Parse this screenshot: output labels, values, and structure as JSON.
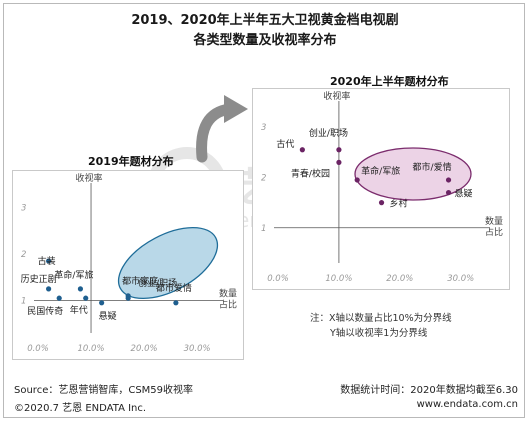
{
  "header": {
    "title_line1": "2019、2020年上半年五大卫视黄金档电视剧",
    "title_line2": "各类型数量及收视率分布"
  },
  "watermark": {
    "text": "艺恩",
    "subtext": "endata"
  },
  "chart_data": [
    {
      "type": "scatter",
      "title": "2019年题材分布",
      "xlabel": "数量占比",
      "ylabel": "收视率",
      "x_ticks": [
        "0.0%",
        "10.0%",
        "20.0%",
        "30.0%"
      ],
      "y_ticks": [
        "1",
        "2",
        "3"
      ],
      "xlim": [
        0,
        33
      ],
      "ylim": [
        0.3,
        3.4
      ],
      "points": [
        {
          "label": "古装",
          "x": 2.0,
          "y": 1.85
        },
        {
          "label": "历史正剧",
          "x": 2.0,
          "y": 1.25
        },
        {
          "label": "民国传奇",
          "x": 4.0,
          "y": 1.05
        },
        {
          "label": "革命/军旅",
          "x": 8.0,
          "y": 1.25
        },
        {
          "label": "年代",
          "x": 9.0,
          "y": 1.05
        },
        {
          "label": "悬疑",
          "x": 12.0,
          "y": 0.95
        },
        {
          "label": "都市家庭",
          "x": 17.0,
          "y": 1.05
        },
        {
          "label": "创业/职场",
          "x": 17.0,
          "y": 1.1
        },
        {
          "label": "都市爱情",
          "x": 26.0,
          "y": 0.95
        }
      ],
      "highlight": "ellipse",
      "highlight_color": "#1f6d99"
    },
    {
      "type": "scatter",
      "title": "2020年上半年题材分布",
      "xlabel": "数量占比",
      "ylabel": "收视率",
      "x_ticks": [
        "0.0%",
        "10.0%",
        "20.0%",
        "30.0%"
      ],
      "y_ticks": [
        "1",
        "2",
        "3"
      ],
      "xlim": [
        0,
        33
      ],
      "ylim": [
        0.3,
        3.4
      ],
      "points": [
        {
          "label": "古代",
          "x": 4.0,
          "y": 2.55
        },
        {
          "label": "创业/职场",
          "x": 10.0,
          "y": 2.55
        },
        {
          "label": "青春/校园",
          "x": 10.0,
          "y": 2.3
        },
        {
          "label": "革命/军旅",
          "x": 13.0,
          "y": 1.95
        },
        {
          "label": "乡村",
          "x": 17.0,
          "y": 1.5
        },
        {
          "label": "都市/爱情",
          "x": 28.0,
          "y": 1.95
        },
        {
          "label": "悬疑",
          "x": 28.0,
          "y": 1.7
        }
      ],
      "highlight": "ellipse",
      "highlight_color": "#7b2c6d"
    }
  ],
  "notes": {
    "line1": "注：X轴以数量占比10%为分界线",
    "line2": "Y轴以收视率1为分界线"
  },
  "footer": {
    "source": "Source：艺恩营销智库，CSM59收视率",
    "copyright": "©2020.7 艺恩 ENDATA Inc.",
    "stat_time": "数据统计时间：2020年数据均截至6.30",
    "website": "www.endata.com.cn"
  },
  "colors": {
    "point_2019": "#1f5f8f",
    "point_2020": "#6b2464",
    "ellipse_2019_fill": "#b9d8e8",
    "ellipse_2020_fill": "#ecd3e6",
    "tick_color": "#9a9a9a",
    "arrow": "#8c8c8c"
  }
}
